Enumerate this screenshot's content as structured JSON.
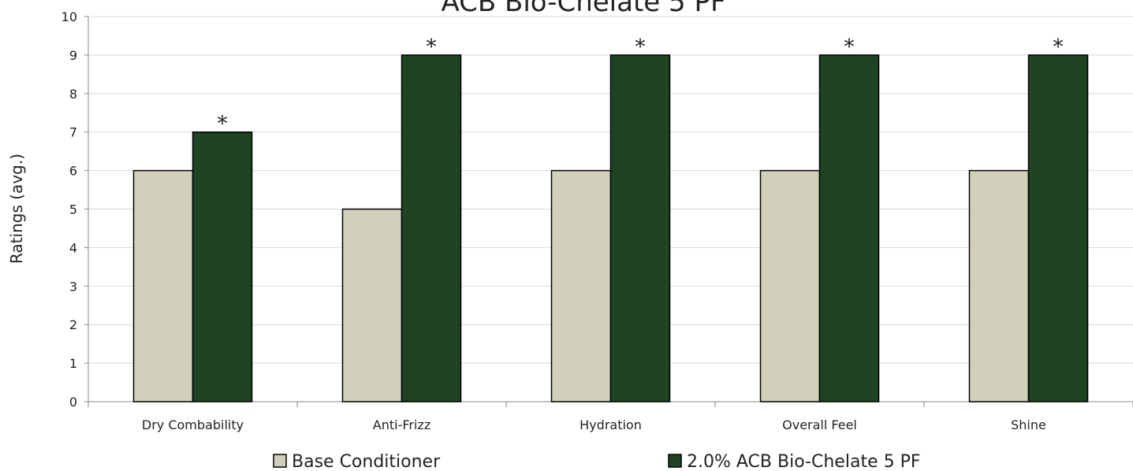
{
  "chart_data": {
    "type": "bar",
    "title": "ACB Bio-Chelate 5 PF",
    "y_label": "Ratings (avg.)",
    "categories": [
      "Dry Combability",
      "Anti-Frizz",
      "Hydration",
      "Overall Feel",
      "Shine"
    ],
    "series": [
      {
        "name": "Base Conditioner",
        "color": "#d1d0bb",
        "values": [
          6,
          5,
          6,
          6,
          6
        ]
      },
      {
        "name": "2.0% ACB Bio-Chelate 5 PF",
        "color": "#1e4423",
        "values": [
          7,
          9,
          9,
          9,
          9
        ]
      }
    ],
    "annotations": [
      "*",
      "*",
      "*",
      "*",
      "*"
    ],
    "ylim": [
      0,
      10
    ],
    "yticks": [
      0,
      1,
      2,
      3,
      4,
      5,
      6,
      7,
      8,
      9,
      10
    ],
    "grid": true
  }
}
